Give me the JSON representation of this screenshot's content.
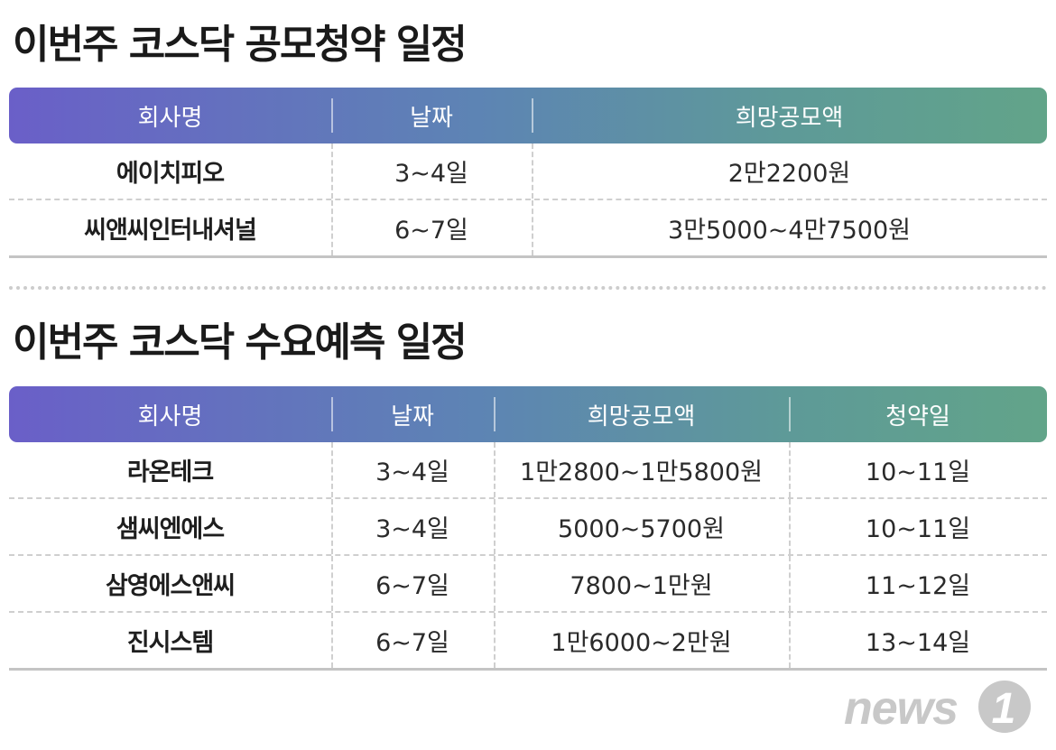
{
  "section1": {
    "title": "이번주 코스닥 공모청약 일정",
    "headers": [
      "회사명",
      "날짜",
      "희망공모액"
    ],
    "rows": [
      [
        "에이치피오",
        "3~4일",
        "2만2200원"
      ],
      [
        "씨앤씨인터내셔널",
        "6~7일",
        "3만5000~4만7500원"
      ]
    ]
  },
  "section2": {
    "title": "이번주 코스닥 수요예측 일정",
    "headers": [
      "회사명",
      "날짜",
      "희망공모액",
      "청약일"
    ],
    "rows": [
      [
        "라온테크",
        "3~4일",
        "1만2800~1만5800원",
        "10~11일"
      ],
      [
        "샘씨엔에스",
        "3~4일",
        "5000~5700원",
        "10~11일"
      ],
      [
        "삼영에스앤씨",
        "6~7일",
        "7800~1만원",
        "11~12일"
      ],
      [
        "진시스템",
        "6~7일",
        "1만6000~2만원",
        "13~14일"
      ]
    ]
  },
  "logo": {
    "text": "news",
    "mark": "1",
    "color": "#c8c8c8",
    "icon": "news1-logo-icon"
  },
  "colors": {
    "header_start": "#6a5fc8",
    "header_end": "#62a489"
  }
}
